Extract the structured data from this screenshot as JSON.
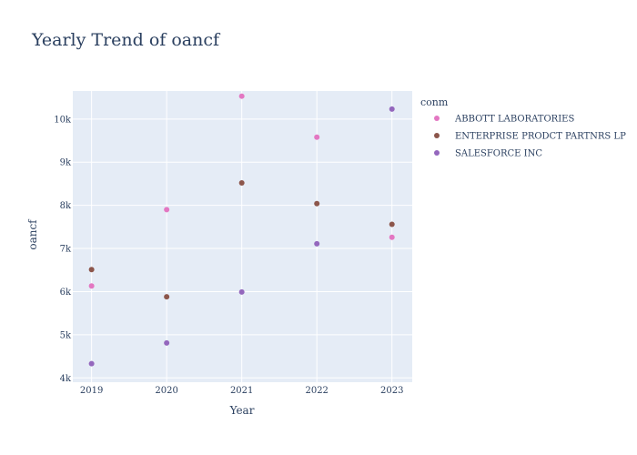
{
  "chart_data": {
    "type": "scatter",
    "title": "Yearly Trend of oancf",
    "xlabel": "Year",
    "ylabel": "oancf",
    "x": [
      2019,
      2020,
      2021,
      2022,
      2023
    ],
    "x_tick_labels": [
      "2019",
      "2020",
      "2021",
      "2022",
      "2023"
    ],
    "y_ticks": [
      4000,
      5000,
      6000,
      7000,
      8000,
      9000,
      10000
    ],
    "y_tick_labels": [
      "4k",
      "5k",
      "6k",
      "7k",
      "8k",
      "9k",
      "10k"
    ],
    "xlim": [
      2018.75,
      2023.27
    ],
    "ylim": [
      3900,
      10650
    ],
    "grid": true,
    "legend_title": "conm",
    "legend_position": "top-right",
    "plot_background": "#e5ecf6",
    "series": [
      {
        "name": "ABBOTT LABORATORIES",
        "color": "#e377c2",
        "values": [
          6130,
          7900,
          10530,
          9580,
          7260
        ]
      },
      {
        "name": "ENTERPRISE PRODCT PARTNRS LP",
        "color": "#8c564b",
        "values": [
          6510,
          5880,
          8520,
          8040,
          7560
        ]
      },
      {
        "name": "SALESFORCE INC",
        "color": "#9467bd",
        "values": [
          4330,
          4810,
          5990,
          7110,
          10230
        ]
      }
    ]
  }
}
